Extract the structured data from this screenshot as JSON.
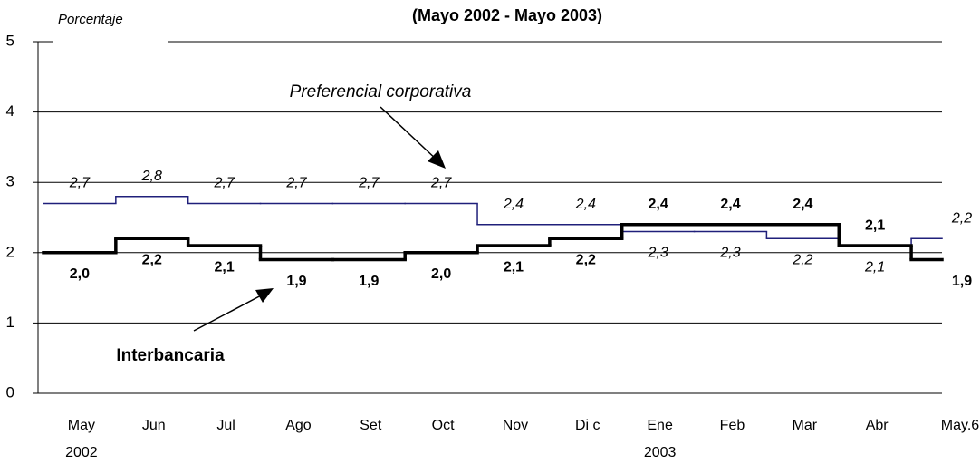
{
  "chart_data": {
    "type": "step",
    "title": "(Mayo 2002 - Mayo 2003)",
    "y_label": "Porcentaje",
    "categories": [
      "May",
      "Jun",
      "Jul",
      "Ago",
      "Set",
      "Oct",
      "Nov",
      "Di c",
      "Ene",
      "Feb",
      "Mar",
      "Abr",
      "May.6"
    ],
    "category_years": [
      "2002",
      null,
      null,
      null,
      null,
      null,
      null,
      null,
      "2003",
      null,
      null,
      null,
      null
    ],
    "series": [
      {
        "name": "Preferencial corporativa",
        "color": "#1f1f7a",
        "values": [
          2.7,
          2.8,
          2.7,
          2.7,
          2.7,
          2.7,
          2.4,
          2.4,
          2.3,
          2.3,
          2.2,
          2.1,
          2.2
        ],
        "value_labels": [
          "2,7",
          "2,8",
          "2,7",
          "2,7",
          "2,7",
          "2,7",
          "2,4",
          "2,4",
          "2,3",
          "2,3",
          "2,2",
          "2,1",
          "2,2"
        ]
      },
      {
        "name": "Interbancaria",
        "color": "#000000",
        "values": [
          2.0,
          2.2,
          2.1,
          1.9,
          1.9,
          2.0,
          2.1,
          2.2,
          2.4,
          2.4,
          2.4,
          2.1,
          1.9
        ],
        "value_labels": [
          "2,0",
          "2,2",
          "2,1",
          "1,9",
          "1,9",
          "2,0",
          "2,1",
          "2,2",
          "2,4",
          "2,4",
          "2,4",
          "2,1",
          "1,9"
        ]
      }
    ],
    "ylim": [
      0,
      5
    ],
    "yticks": [
      0,
      1,
      2,
      3,
      4,
      5
    ],
    "grid": true
  }
}
